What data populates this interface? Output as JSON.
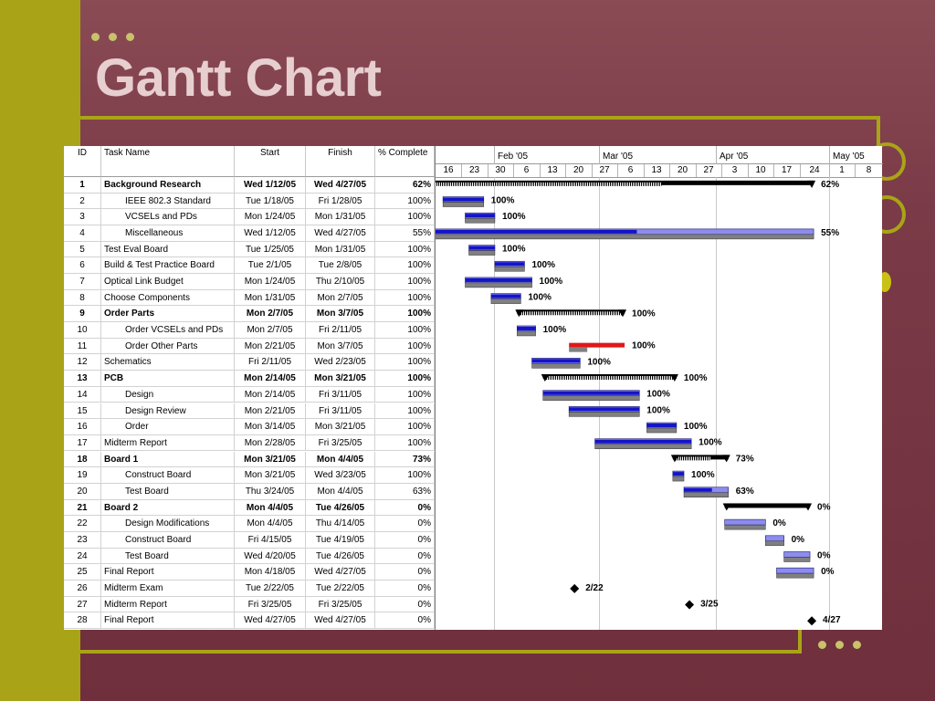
{
  "slide": {
    "title": "Gantt Chart"
  },
  "table": {
    "headers": {
      "id": "ID",
      "name": "Task Name",
      "start": "Start",
      "finish": "Finish",
      "pct": "% Complete"
    },
    "rows": [
      {
        "id": "1",
        "name": "Background Research",
        "start": "Wed 1/12/05",
        "finish": "Wed 4/27/05",
        "pct": "62%",
        "bold": true,
        "indent": false
      },
      {
        "id": "2",
        "name": "IEEE 802.3 Standard",
        "start": "Tue 1/18/05",
        "finish": "Fri 1/28/05",
        "pct": "100%",
        "bold": false,
        "indent": true
      },
      {
        "id": "3",
        "name": "VCSELs and PDs",
        "start": "Mon 1/24/05",
        "finish": "Mon 1/31/05",
        "pct": "100%",
        "bold": false,
        "indent": true
      },
      {
        "id": "4",
        "name": "Miscellaneous",
        "start": "Wed 1/12/05",
        "finish": "Wed 4/27/05",
        "pct": "55%",
        "bold": false,
        "indent": true
      },
      {
        "id": "5",
        "name": "Test Eval Board",
        "start": "Tue 1/25/05",
        "finish": "Mon 1/31/05",
        "pct": "100%",
        "bold": false,
        "indent": false
      },
      {
        "id": "6",
        "name": "Build & Test Practice Board",
        "start": "Tue 2/1/05",
        "finish": "Tue 2/8/05",
        "pct": "100%",
        "bold": false,
        "indent": false
      },
      {
        "id": "7",
        "name": "Optical Link Budget",
        "start": "Mon 1/24/05",
        "finish": "Thu 2/10/05",
        "pct": "100%",
        "bold": false,
        "indent": false
      },
      {
        "id": "8",
        "name": "Choose Components",
        "start": "Mon 1/31/05",
        "finish": "Mon 2/7/05",
        "pct": "100%",
        "bold": false,
        "indent": false
      },
      {
        "id": "9",
        "name": "Order Parts",
        "start": "Mon 2/7/05",
        "finish": "Mon 3/7/05",
        "pct": "100%",
        "bold": true,
        "indent": false
      },
      {
        "id": "10",
        "name": "Order VCSELs and PDs",
        "start": "Mon 2/7/05",
        "finish": "Fri 2/11/05",
        "pct": "100%",
        "bold": false,
        "indent": true
      },
      {
        "id": "11",
        "name": "Order Other Parts",
        "start": "Mon 2/21/05",
        "finish": "Mon 3/7/05",
        "pct": "100%",
        "bold": false,
        "indent": true
      },
      {
        "id": "12",
        "name": "Schematics",
        "start": "Fri 2/11/05",
        "finish": "Wed 2/23/05",
        "pct": "100%",
        "bold": false,
        "indent": false
      },
      {
        "id": "13",
        "name": "PCB",
        "start": "Mon 2/14/05",
        "finish": "Mon 3/21/05",
        "pct": "100%",
        "bold": true,
        "indent": false
      },
      {
        "id": "14",
        "name": "Design",
        "start": "Mon 2/14/05",
        "finish": "Fri 3/11/05",
        "pct": "100%",
        "bold": false,
        "indent": true
      },
      {
        "id": "15",
        "name": "Design Review",
        "start": "Mon 2/21/05",
        "finish": "Fri 3/11/05",
        "pct": "100%",
        "bold": false,
        "indent": true
      },
      {
        "id": "16",
        "name": "Order",
        "start": "Mon 3/14/05",
        "finish": "Mon 3/21/05",
        "pct": "100%",
        "bold": false,
        "indent": true
      },
      {
        "id": "17",
        "name": "Midterm Report",
        "start": "Mon 2/28/05",
        "finish": "Fri 3/25/05",
        "pct": "100%",
        "bold": false,
        "indent": false
      },
      {
        "id": "18",
        "name": "Board 1",
        "start": "Mon 3/21/05",
        "finish": "Mon 4/4/05",
        "pct": "73%",
        "bold": true,
        "indent": false
      },
      {
        "id": "19",
        "name": "Construct Board",
        "start": "Mon 3/21/05",
        "finish": "Wed 3/23/05",
        "pct": "100%",
        "bold": false,
        "indent": true
      },
      {
        "id": "20",
        "name": "Test Board",
        "start": "Thu 3/24/05",
        "finish": "Mon 4/4/05",
        "pct": "63%",
        "bold": false,
        "indent": true
      },
      {
        "id": "21",
        "name": "Board 2",
        "start": "Mon 4/4/05",
        "finish": "Tue 4/26/05",
        "pct": "0%",
        "bold": true,
        "indent": false
      },
      {
        "id": "22",
        "name": "Design Modifications",
        "start": "Mon 4/4/05",
        "finish": "Thu 4/14/05",
        "pct": "0%",
        "bold": false,
        "indent": true
      },
      {
        "id": "23",
        "name": "Construct Board",
        "start": "Fri 4/15/05",
        "finish": "Tue 4/19/05",
        "pct": "0%",
        "bold": false,
        "indent": true
      },
      {
        "id": "24",
        "name": "Test Board",
        "start": "Wed 4/20/05",
        "finish": "Tue 4/26/05",
        "pct": "0%",
        "bold": false,
        "indent": true
      },
      {
        "id": "25",
        "name": "Final Report",
        "start": "Mon 4/18/05",
        "finish": "Wed 4/27/05",
        "pct": "0%",
        "bold": false,
        "indent": false
      },
      {
        "id": "26",
        "name": "Midterm Exam",
        "start": "Tue 2/22/05",
        "finish": "Tue 2/22/05",
        "pct": "0%",
        "bold": false,
        "indent": false
      },
      {
        "id": "27",
        "name": "Midterm Report",
        "start": "Fri 3/25/05",
        "finish": "Fri 3/25/05",
        "pct": "0%",
        "bold": false,
        "indent": false
      },
      {
        "id": "28",
        "name": "Final Report",
        "start": "Wed 4/27/05",
        "finish": "Wed 4/27/05",
        "pct": "0%",
        "bold": false,
        "indent": false
      }
    ]
  },
  "timescale": {
    "months": [
      "Feb '05",
      "Mar '05",
      "Apr '05",
      "May '05"
    ],
    "weeks": [
      "16",
      "23",
      "30",
      "6",
      "13",
      "20",
      "27",
      "6",
      "13",
      "20",
      "27",
      "3",
      "10",
      "17",
      "24",
      "1",
      "8"
    ]
  },
  "gantt": {
    "bar_labels": [
      "62%",
      "100%",
      "100%",
      "55%",
      "100%",
      "100%",
      "100%",
      "100%",
      "100%",
      "100%",
      "100%",
      "100%",
      "100%",
      "100%",
      "100%",
      "100%",
      "100%",
      "73%",
      "100%",
      "63%",
      "0%",
      "0%",
      "0%",
      "0%",
      "0%",
      "2/22",
      "3/25",
      "4/27"
    ],
    "colors": {
      "progress": "#1414c8",
      "planned": "#8c8cf0",
      "baseline": "#808080",
      "critical": "#e01818",
      "summary": "#000000"
    }
  }
}
